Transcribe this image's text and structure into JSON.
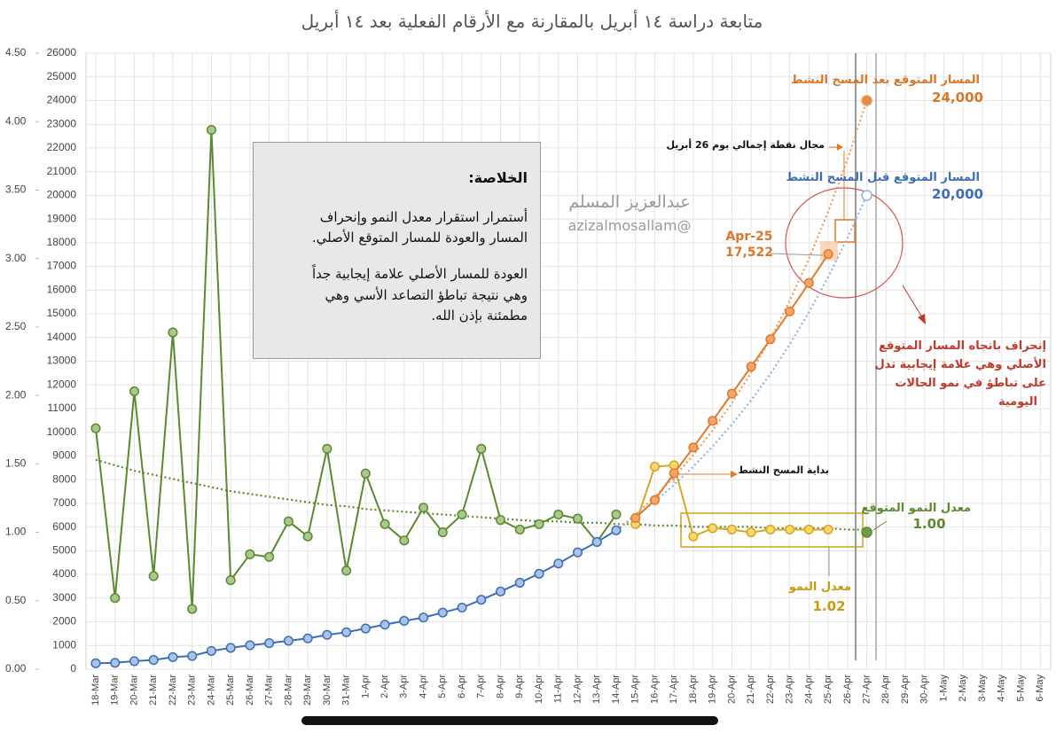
{
  "chart_data": {
    "type": "line",
    "title": "متابعة دراسة ١٤ أبريل بالمقارنة مع الأرقام الفعلية بعد ١٤ أبريل",
    "categories": [
      "18-Mar",
      "19-Mar",
      "20-Mar",
      "21-Mar",
      "22-Mar",
      "23-Mar",
      "24-Mar",
      "25-Mar",
      "26-Mar",
      "27-Mar",
      "28-Mar",
      "29-Mar",
      "30-Mar",
      "31-Mar",
      "1-Apr",
      "2-Apr",
      "3-Apr",
      "4-Apr",
      "5-Apr",
      "6-Apr",
      "7-Apr",
      "8-Apr",
      "9-Apr",
      "10-Apr",
      "11-Apr",
      "12-Apr",
      "13-Apr",
      "14-Apr",
      "15-Apr",
      "16-Apr",
      "17-Apr",
      "18-Apr",
      "19-Apr",
      "20-Apr",
      "21-Apr",
      "22-Apr",
      "23-Apr",
      "24-Apr",
      "25-Apr",
      "26-Apr",
      "27-Apr",
      "28-Apr",
      "29-Apr",
      "30-Apr",
      "1-May",
      "2-May",
      "3-May",
      "4-May",
      "5-May",
      "6-May"
    ],
    "ylim": [
      0,
      26000
    ],
    "yticks": [
      0,
      1000,
      2000,
      3000,
      4000,
      5000,
      6000,
      7000,
      8000,
      9000,
      10000,
      11000,
      12000,
      13000,
      14000,
      15000,
      16000,
      17000,
      18000,
      19000,
      20000,
      21000,
      22000,
      23000,
      24000,
      25000,
      26000
    ],
    "y2lim": [
      0,
      4.5
    ],
    "y2ticks": [
      {
        "value": 0,
        "label": "0.00"
      },
      {
        "value": 0.5,
        "label": "0.50"
      },
      {
        "value": 1,
        "label": "1.00"
      },
      {
        "value": 1.5,
        "label": "1.50"
      },
      {
        "value": 2,
        "label": "2.00"
      },
      {
        "value": 2.5,
        "label": "2.50"
      },
      {
        "value": 3,
        "label": "3.00"
      },
      {
        "value": 3.5,
        "label": "3.50"
      },
      {
        "value": 4,
        "label": "4.00"
      },
      {
        "value": 4.5,
        "label": "4.50"
      }
    ],
    "grid": true,
    "series": [
      {
        "style": "dotted",
        "axis": "y2",
        "color": "#5b8a2e",
        "values": [
          1.53,
          1.49,
          1.45,
          1.42,
          1.39,
          1.36,
          1.33,
          1.3,
          1.28,
          1.26,
          1.24,
          1.22,
          1.2,
          1.19,
          1.17,
          1.16,
          1.15,
          1.14,
          1.13,
          1.12,
          1.11,
          1.1,
          1.09,
          1.08,
          1.08,
          1.07,
          1.07,
          1.06,
          1.06,
          1.05,
          1.05,
          1.04,
          1.04,
          1.04,
          1.04,
          1.03,
          1.03,
          1.03,
          1.03,
          1.02,
          1.02,
          null,
          null,
          null,
          null,
          null,
          null,
          null,
          null,
          null
        ]
      },
      {
        "style": "line-markers",
        "axis": "y2",
        "color": "#5b8a2e",
        "fill": "#a8c98a",
        "values": [
          1.76,
          0.52,
          2.03,
          0.68,
          2.46,
          0.44,
          3.94,
          0.65,
          0.84,
          0.82,
          1.08,
          0.97,
          1.61,
          0.72,
          1.43,
          1.06,
          0.94,
          1.18,
          1.0,
          1.13,
          1.61,
          1.09,
          1.02,
          1.06,
          1.13,
          1.1,
          0.93,
          1.13,
          null,
          null,
          null,
          null,
          null,
          null,
          null,
          null,
          null,
          null,
          null,
          null,
          null,
          null,
          null,
          null,
          null,
          null,
          null,
          null,
          null,
          null
        ]
      },
      {
        "style": "markers",
        "axis": "y2",
        "color": "#5b8a2e",
        "fill": "#6f9a48",
        "values": [
          null,
          null,
          null,
          null,
          null,
          null,
          null,
          null,
          null,
          null,
          null,
          null,
          null,
          null,
          null,
          null,
          null,
          null,
          null,
          null,
          null,
          null,
          null,
          null,
          null,
          null,
          null,
          null,
          null,
          null,
          null,
          null,
          null,
          null,
          null,
          null,
          null,
          null,
          null,
          null,
          1.0,
          null,
          null,
          null,
          null,
          null,
          null,
          null,
          null,
          null
        ]
      },
      {
        "style": "line-markers",
        "axis": "y2",
        "color": "#d9a520",
        "fill": "#f6d86e",
        "values": [
          null,
          null,
          null,
          null,
          null,
          null,
          null,
          null,
          null,
          null,
          null,
          null,
          null,
          null,
          null,
          null,
          null,
          null,
          null,
          null,
          null,
          null,
          null,
          null,
          null,
          null,
          null,
          null,
          1.06,
          1.48,
          1.49,
          0.97,
          1.03,
          1.02,
          1.0,
          1.02,
          1.02,
          1.02,
          1.02,
          null,
          null,
          null,
          null,
          null,
          null,
          null,
          null,
          null,
          null,
          null
        ]
      },
      {
        "style": "dotted",
        "axis": "y",
        "color": "#8fb3e3",
        "end_marker": true,
        "fill": "#ffffff",
        "values": [
          null,
          null,
          null,
          null,
          null,
          null,
          null,
          null,
          null,
          null,
          null,
          null,
          null,
          null,
          null,
          null,
          null,
          null,
          null,
          null,
          null,
          null,
          null,
          null,
          null,
          null,
          null,
          5860,
          6440,
          7080,
          7780,
          8550,
          9400,
          10330,
          11350,
          12470,
          13710,
          15070,
          16560,
          18200,
          20000,
          null,
          null,
          null,
          null,
          null,
          null,
          null,
          null,
          null
        ]
      },
      {
        "style": "dotted",
        "axis": "y",
        "color": "#ee9a5a",
        "end_marker": true,
        "fill": "#e98b3e",
        "values": [
          null,
          null,
          null,
          null,
          null,
          null,
          null,
          null,
          null,
          null,
          null,
          null,
          null,
          null,
          null,
          null,
          null,
          null,
          null,
          null,
          null,
          null,
          null,
          null,
          null,
          null,
          null,
          5860,
          6530,
          7280,
          8110,
          9040,
          10080,
          11230,
          12520,
          13950,
          15550,
          17330,
          19310,
          21520,
          24000,
          null,
          null,
          null,
          null,
          null,
          null,
          null,
          null,
          null
        ]
      },
      {
        "style": "line-markers",
        "axis": "y",
        "color": "#3d6db5",
        "fill": "#a9c3e8",
        "values": [
          250,
          270,
          340,
          390,
          510,
          560,
          770,
          900,
          1010,
          1100,
          1200,
          1300,
          1450,
          1560,
          1720,
          1880,
          2040,
          2180,
          2390,
          2600,
          2930,
          3280,
          3650,
          4030,
          4460,
          4930,
          5370,
          5860,
          null,
          null,
          null,
          null,
          null,
          null,
          null,
          null,
          null,
          null,
          null,
          null,
          null,
          null,
          null,
          null,
          null,
          null,
          null,
          null,
          null,
          null
        ]
      },
      {
        "style": "line-markers",
        "axis": "y",
        "color": "#e07a2a",
        "fill": "#f4a56a",
        "values": [
          null,
          null,
          null,
          null,
          null,
          null,
          null,
          null,
          null,
          null,
          null,
          null,
          null,
          null,
          null,
          null,
          null,
          null,
          null,
          null,
          null,
          null,
          null,
          null,
          null,
          null,
          null,
          null,
          6380,
          7140,
          8270,
          9360,
          10480,
          11630,
          12770,
          13930,
          15100,
          16300,
          17522,
          null,
          null,
          null,
          null,
          null,
          null,
          null,
          null,
          null,
          null,
          null
        ]
      }
    ],
    "annotations": [
      {
        "text": "المسار المتوقع بعد المسح النشط",
        "color": "#d9772b"
      },
      {
        "text": "24,000",
        "color": "#d9772b"
      },
      {
        "text": "مجال نقطة إجمالي يوم 26 أبريل",
        "color": "#111111"
      },
      {
        "text": "المسار المتوقع قبل المسح النشط",
        "color": "#3d6db5"
      },
      {
        "text": "20,000",
        "color": "#3d6db5"
      },
      {
        "text": "25-Apr",
        "color": "#d9772b"
      },
      {
        "text": "17,522",
        "color": "#d9772b"
      },
      {
        "text": "إنحراف باتجاه المسار المتوقع",
        "color": "#c0392b"
      },
      {
        "text": "الأصلي وهي علامة إيجابية تدل",
        "color": "#c0392b"
      },
      {
        "text": "على تباطؤ في نمو الحالات",
        "color": "#c0392b"
      },
      {
        "text": "اليومية",
        "color": "#c0392b"
      },
      {
        "text": "بداية المسح النشط",
        "color": "#111111"
      },
      {
        "text": "معدل النمو المتوقع",
        "color": "#5b8a2e"
      },
      {
        "text": "1.00",
        "color": "#5b8a2e"
      },
      {
        "text": "معدل النمو",
        "color": "#c99a10"
      },
      {
        "text": "1.02",
        "color": "#c99a10"
      },
      {
        "text": "عبدالعزيز المسلم",
        "color": "#9a9a9a"
      },
      {
        "text": "@azizalmosallam",
        "color": "#9a9a9a"
      }
    ],
    "summary": {
      "heading": "الخلاصة:",
      "lines": [
        "أستمرار استقرار معدل النمو وإنحراف",
        "المسار والعودة للمسار المتوقع الأصلي.",
        "العودة للمسار الأصلي علامة إيجابية جداً",
        "وهي نتيجة تباطؤ التصاعد الأسي وهي",
        "مطمئنة بإذن الله."
      ]
    }
  }
}
